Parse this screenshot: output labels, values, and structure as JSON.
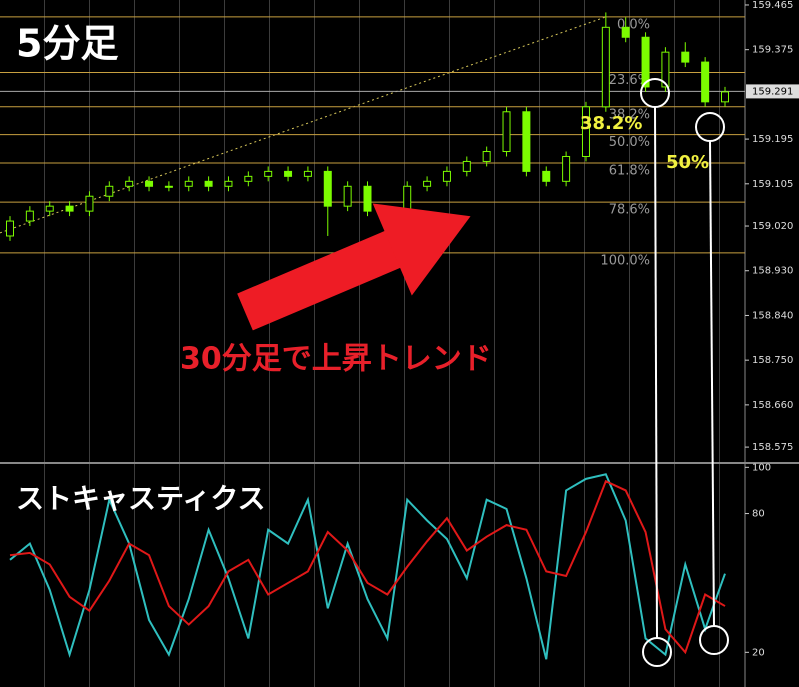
{
  "chart_data": [
    {
      "type": "candlestick",
      "title": "5分足",
      "annotation": "30分足で上昇トレンド",
      "color": "#7cfc00",
      "ylim": [
        158.545,
        159.475
      ],
      "yticks": [
        159.465,
        159.375,
        159.195,
        159.105,
        {
          "value": 159.02,
          "label": "159.020"
        },
        {
          "value": 158.93,
          "label": "158.930"
        },
        {
          "value": 158.84,
          "label": "158.840"
        },
        {
          "value": 158.75,
          "label": "158.750"
        },
        {
          "value": 158.66,
          "label": "158.660"
        },
        158.575
      ],
      "current_price": 159.291,
      "fibonacci": [
        {
          "label": "0.0%",
          "value": 159.441
        },
        {
          "label": "23.6%",
          "value": 159.329
        },
        {
          "label": "38.2%",
          "value": 159.26
        },
        {
          "label": "50.0%",
          "value": 159.204
        },
        {
          "label": "61.8%",
          "value": 159.147
        },
        {
          "label": "78.6%",
          "value": 159.068
        },
        {
          "label": "100.0%",
          "value": 158.966
        }
      ],
      "highlights": [
        "38.2%",
        "50%"
      ],
      "open": [
        159.0,
        159.03,
        159.05,
        159.06,
        159.05,
        159.08,
        159.1,
        159.11,
        159.1,
        159.1,
        159.11,
        159.1,
        159.11,
        159.12,
        159.13,
        159.12,
        159.13,
        159.06,
        159.1,
        159.05,
        159.04,
        159.1,
        159.11,
        159.13,
        159.15,
        159.17,
        159.25,
        159.13,
        159.11,
        159.16,
        159.26,
        159.42,
        159.4,
        159.3,
        159.37,
        159.35,
        159.27
      ],
      "high": [
        159.04,
        159.06,
        159.07,
        159.07,
        159.09,
        159.11,
        159.12,
        159.12,
        159.11,
        159.12,
        159.12,
        159.12,
        159.13,
        159.14,
        159.14,
        159.14,
        159.14,
        159.11,
        159.11,
        159.06,
        159.11,
        159.12,
        159.14,
        159.16,
        159.18,
        159.26,
        159.26,
        159.14,
        159.17,
        159.27,
        159.45,
        159.44,
        159.41,
        159.38,
        159.39,
        159.36,
        159.3
      ],
      "low": [
        158.99,
        159.02,
        159.04,
        159.04,
        159.04,
        159.07,
        159.09,
        159.09,
        159.09,
        159.09,
        159.09,
        159.09,
        159.1,
        159.11,
        159.11,
        159.11,
        159.0,
        159.05,
        159.04,
        159.02,
        159.03,
        159.09,
        159.1,
        159.12,
        159.14,
        159.16,
        159.12,
        159.1,
        159.1,
        159.15,
        159.25,
        159.39,
        159.29,
        159.29,
        159.34,
        159.26,
        159.26
      ],
      "close": [
        159.03,
        159.05,
        159.06,
        159.05,
        159.08,
        159.1,
        159.11,
        159.1,
        159.1,
        159.11,
        159.1,
        159.11,
        159.12,
        159.13,
        159.12,
        159.13,
        159.06,
        159.1,
        159.05,
        159.04,
        159.1,
        159.11,
        159.13,
        159.15,
        159.17,
        159.25,
        159.13,
        159.11,
        159.16,
        159.26,
        159.42,
        159.4,
        159.3,
        159.37,
        159.35,
        159.27,
        159.29
      ]
    },
    {
      "type": "line",
      "title": "ストキャスティクス",
      "ylim": [
        5,
        101
      ],
      "yticks": [
        100,
        80,
        20
      ],
      "series": [
        {
          "color": "#2fbfbf",
          "values": [
            60,
            67,
            47,
            19,
            47,
            86,
            67,
            34,
            19,
            43,
            73,
            52,
            26,
            73,
            67,
            86,
            39,
            67,
            43,
            26,
            86,
            77,
            69,
            52,
            86,
            82,
            52,
            17,
            90,
            95,
            97,
            77,
            26,
            19,
            58,
            30,
            54
          ]
        },
        {
          "color": "#e01818",
          "values": [
            62,
            63,
            58,
            44,
            38,
            51,
            67,
            62,
            40,
            32,
            40,
            55,
            60,
            45,
            50,
            55,
            72,
            64,
            50,
            45,
            57,
            68,
            78,
            64,
            70,
            75,
            73,
            55,
            53,
            72,
            94,
            90,
            72,
            30,
            20,
            45,
            40
          ]
        }
      ]
    }
  ]
}
